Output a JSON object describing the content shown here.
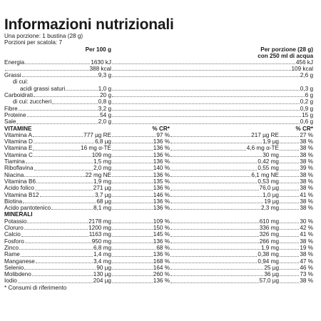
{
  "title": "Informazioni nutrizionali",
  "portion": "Una porzione: 1 bustina (28 g)",
  "portions_per_box": "Porzioni per scatola: 7",
  "col_per100": "Per 100 g",
  "col_perportion_1": "Per porzione (28 g)",
  "col_perportion_2": "con 250 ml di acqua",
  "basic": [
    {
      "label": "Energia",
      "v100": "1630 kJ",
      "vp": "456 kJ",
      "indent": 0
    },
    {
      "label": "",
      "v100": "388 kcal",
      "vp": "109 kcal",
      "indent": 0
    },
    {
      "label": "Grassi",
      "v100": "9,3 g",
      "vp": "2,6 g",
      "indent": 0
    },
    {
      "label": "di cui:",
      "v100": "",
      "vp": "",
      "indent": 1
    },
    {
      "label": "acidi grassi saturi",
      "v100": "1,0 g",
      "vp": "0,3 g",
      "indent": 2
    },
    {
      "label": "Carboidrati",
      "v100": "20 g",
      "vp": "6 g",
      "indent": 0
    },
    {
      "label": "di cui: zuccheri",
      "v100": "0,8 g",
      "vp": "0,2 g",
      "indent": 1
    },
    {
      "label": "Fibre",
      "v100": "3,2 g",
      "vp": "0,9 g",
      "indent": 0
    },
    {
      "label": "Proteine",
      "v100": "54 g",
      "vp": "15 g",
      "indent": 0
    },
    {
      "label": "Sale",
      "v100": "2,0 g",
      "vp": "0,6 g",
      "indent": 0
    }
  ],
  "vitamins_header": "VITAMINE",
  "cr_header_1": "% CR*",
  "cr_header_2": "% CR*",
  "vitamins": [
    {
      "label": "Vitamina A",
      "v100": "777 µg RE",
      "cr100": "97 %",
      "vp": "217 µg RE",
      "crp": "27 %"
    },
    {
      "label": "Vitamina D",
      "v100": "6,8 µg",
      "cr100": "136 %",
      "vp": "1,9 µg",
      "crp": "38 %"
    },
    {
      "label": "Vitamina E",
      "v100": "16 mg α-TE",
      "cr100": "136 %",
      "vp": "4,6 mg α-TE",
      "crp": "38 %"
    },
    {
      "label": "Vitamina C",
      "v100": "109 mg",
      "cr100": "136 %",
      "vp": "30 mg",
      "crp": "38 %"
    },
    {
      "label": "Tiamina",
      "v100": "1,5 mg",
      "cr100": "136 %",
      "vp": "0,42 mg",
      "crp": "38 %"
    },
    {
      "label": "Riboflavina",
      "v100": "2,0 mg",
      "cr100": "140 %",
      "vp": "0,55 mg",
      "crp": "39 %"
    },
    {
      "label": "Niacina",
      "v100": "22 mg NE",
      "cr100": "136 %",
      "vp": "6,1 mg NE",
      "crp": "38 %"
    },
    {
      "label": "Vitamina B6",
      "v100": "1,9 mg",
      "cr100": "135 %",
      "vp": "0,53 mg",
      "crp": "38 %"
    },
    {
      "label": "Acido folico",
      "v100": "271 µg",
      "cr100": "136 %",
      "vp": "76,0 µg",
      "crp": "38 %"
    },
    {
      "label": "Vitamina B12",
      "v100": "3,7 µg",
      "cr100": "146 %",
      "vp": "1,0 µg",
      "crp": "41 %"
    },
    {
      "label": "Biotina",
      "v100": "68 µg",
      "cr100": "136 %",
      "vp": "19 µg",
      "crp": "38 %"
    },
    {
      "label": "Acido pantotenico",
      "v100": "8,1 mg",
      "cr100": "136 %",
      "vp": "2,3 mg",
      "crp": "38 %"
    }
  ],
  "minerals_header": "MINERALI",
  "minerals": [
    {
      "label": "Potassio",
      "v100": "2178 mg",
      "cr100": "109 %",
      "vp": "610 mg",
      "crp": "30 %"
    },
    {
      "label": "Cloruro",
      "v100": "1200 mg",
      "cr100": "150 %",
      "vp": "336 mg",
      "crp": "42 %"
    },
    {
      "label": "Calcio",
      "v100": "1163 mg",
      "cr100": "145 %",
      "vp": "326 mg",
      "crp": "41 %"
    },
    {
      "label": "Fosforo",
      "v100": "950 mg",
      "cr100": "136 %",
      "vp": "266 mg",
      "crp": "38 %"
    },
    {
      "label": "Zinco",
      "v100": "6,8 mg",
      "cr100": "68 %",
      "vp": "1,9 mg",
      "crp": "19 %"
    },
    {
      "label": "Rame",
      "v100": "1,4 mg",
      "cr100": "136 %",
      "vp": "0,38 mg",
      "crp": "38 %"
    },
    {
      "label": "Manganese",
      "v100": "3,4 mg",
      "cr100": "168 %",
      "vp": "0,94 mg",
      "crp": "47 %"
    },
    {
      "label": "Selenio",
      "v100": "90 µg",
      "cr100": "164 %",
      "vp": "25 µg",
      "crp": "46 %"
    },
    {
      "label": "Molibdeno",
      "v100": "130 µg",
      "cr100": "260 %",
      "vp": "36 µg",
      "crp": "73 %"
    },
    {
      "label": "Iodio",
      "v100": "204 µg",
      "cr100": "136 %",
      "vp": "57,0 µg",
      "crp": "38 %"
    }
  ],
  "footnote": "* Consumi di riferimento"
}
